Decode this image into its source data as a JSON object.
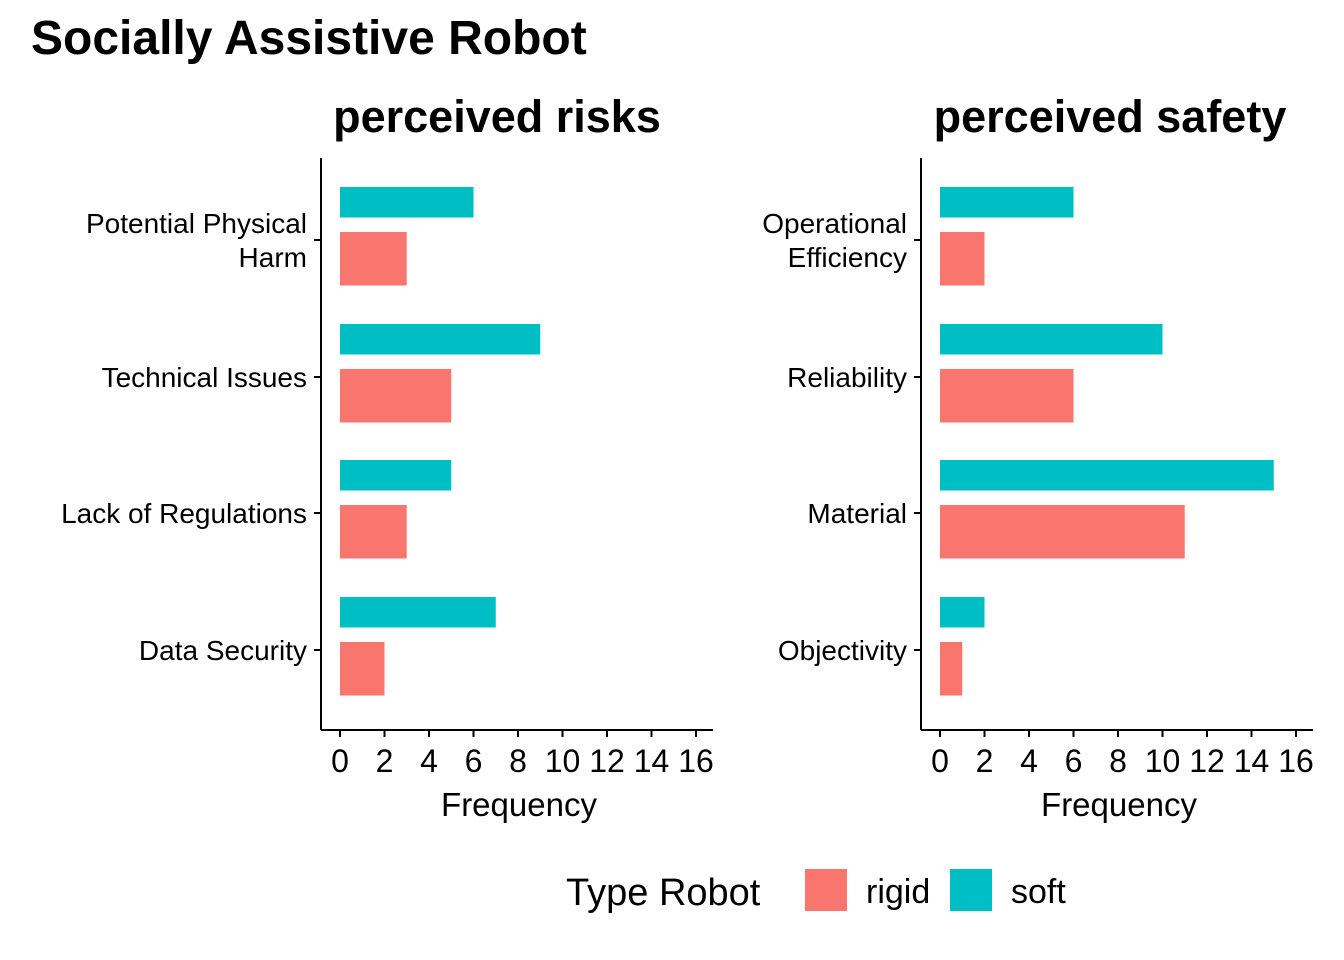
{
  "title": "Socially Assistive Robot",
  "legend": {
    "title": "Type Robot",
    "items": [
      {
        "label": "rigid",
        "color": "#F8766D"
      },
      {
        "label": "soft",
        "color": "#00BFC4"
      }
    ]
  },
  "chart_data": [
    {
      "type": "bar",
      "orientation": "horizontal",
      "title": "perceived risks",
      "xlabel": "Frequency",
      "ylabel": "",
      "xlim": [
        0,
        16
      ],
      "xticks": [
        "0",
        "2",
        "4",
        "6",
        "8",
        "10",
        "12",
        "14",
        "16"
      ],
      "categories": [
        [
          "Potential Physical",
          "Harm"
        ],
        [
          "Technical Issues"
        ],
        [
          "Lack of Regulations"
        ],
        [
          "Data Security"
        ]
      ],
      "series": [
        {
          "name": "rigid",
          "color": "#F8766D",
          "values": [
            3,
            5,
            3,
            2
          ]
        },
        {
          "name": "soft",
          "color": "#00BFC4",
          "values": [
            6,
            9,
            5,
            7
          ]
        }
      ],
      "grid": false,
      "legend_position": "bottom"
    },
    {
      "type": "bar",
      "orientation": "horizontal",
      "title": "perceived safety",
      "xlabel": "Frequency",
      "ylabel": "",
      "xlim": [
        0,
        16
      ],
      "xticks": [
        "0",
        "2",
        "4",
        "6",
        "8",
        "10",
        "12",
        "14",
        "16"
      ],
      "categories": [
        [
          "Operational",
          "Efficiency"
        ],
        [
          "Reliability"
        ],
        [
          "Material"
        ],
        [
          "Objectivity"
        ]
      ],
      "series": [
        {
          "name": "rigid",
          "color": "#F8766D",
          "values": [
            2,
            6,
            11,
            1
          ]
        },
        {
          "name": "soft",
          "color": "#00BFC4",
          "values": [
            6,
            10,
            15,
            2
          ]
        }
      ],
      "grid": false,
      "legend_position": "bottom"
    }
  ]
}
